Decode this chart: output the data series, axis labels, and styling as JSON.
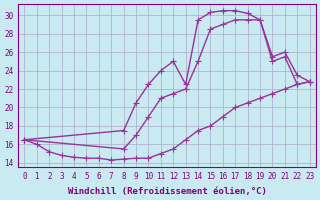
{
  "xlabel": "Windchill (Refroidissement éolien,°C)",
  "bg_color": "#c8eaf0",
  "grid_color": "#aaaacc",
  "line_color": "#993399",
  "xlim": [
    -0.5,
    23.5
  ],
  "ylim": [
    13.5,
    31.2
  ],
  "xticks": [
    0,
    1,
    2,
    3,
    4,
    5,
    6,
    7,
    8,
    9,
    10,
    11,
    12,
    13,
    14,
    15,
    16,
    17,
    18,
    19,
    20,
    21,
    22,
    23
  ],
  "yticks": [
    14,
    16,
    18,
    20,
    22,
    24,
    26,
    28,
    30
  ],
  "line1_x": [
    0,
    1,
    2,
    3,
    4,
    5,
    6,
    7,
    8,
    9,
    10,
    11,
    12,
    13,
    14,
    15,
    16,
    17,
    18,
    19,
    20,
    21,
    22,
    23
  ],
  "line1_y": [
    16.5,
    16.0,
    15.2,
    14.8,
    14.6,
    14.5,
    14.5,
    14.3,
    14.4,
    14.5,
    14.5,
    15.0,
    15.5,
    16.5,
    17.5,
    18.0,
    19.0,
    20.0,
    20.5,
    21.0,
    21.5,
    22.0,
    22.5,
    22.8
  ],
  "line2_x": [
    0,
    8,
    9,
    10,
    11,
    12,
    13,
    14,
    15,
    16,
    17,
    18,
    19,
    20,
    21,
    22,
    23
  ],
  "line2_y": [
    16.5,
    17.5,
    20.5,
    22.5,
    24.0,
    25.0,
    22.5,
    29.5,
    30.3,
    30.5,
    30.5,
    30.2,
    29.5,
    25.5,
    26.0,
    23.5,
    22.8
  ],
  "line3_x": [
    0,
    8,
    9,
    10,
    11,
    12,
    13,
    14,
    15,
    16,
    17,
    18,
    19,
    20,
    21,
    22,
    23
  ],
  "line3_y": [
    16.5,
    15.5,
    17.0,
    19.0,
    21.0,
    21.5,
    22.0,
    25.0,
    28.5,
    29.0,
    29.5,
    29.5,
    29.5,
    25.0,
    25.5,
    22.5,
    22.8
  ],
  "marker": "+",
  "markersize": 4,
  "linewidth": 1.0,
  "font_color": "#800080",
  "axis_fontsize": 6.5,
  "tick_fontsize": 5.5
}
